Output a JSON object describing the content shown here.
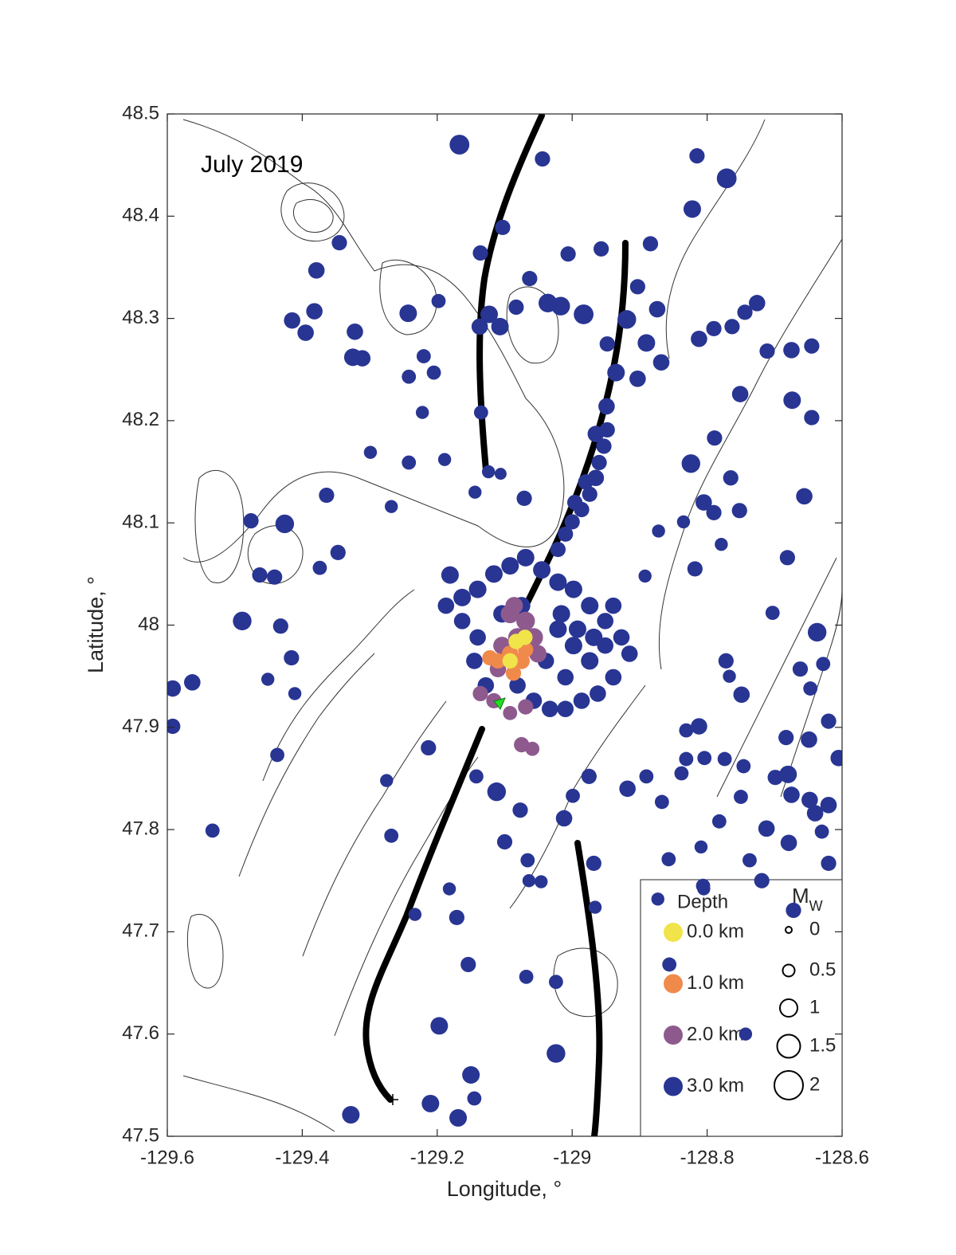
{
  "chart_data": {
    "type": "scatter",
    "annotation": "July 2019",
    "xlabel": "Longitude, °",
    "ylabel": "Latitude, °",
    "xlim": [
      -129.6,
      -128.6
    ],
    "ylim": [
      47.5,
      48.5
    ],
    "xticks": [
      -129.6,
      -129.4,
      -129.2,
      -129,
      -128.8,
      -128.6
    ],
    "yticks": [
      47.5,
      47.6,
      47.7,
      47.8,
      47.9,
      48,
      48.1,
      48.2,
      48.3,
      48.4,
      48.5
    ],
    "legend_title": "Depth",
    "size_legend_title": "M",
    "size_legend_subscript": "W",
    "size_legend_values": [
      0,
      0.5,
      1,
      1.5,
      2
    ],
    "series": [
      {
        "name": "0.0 km",
        "color": "#f0e44a",
        "x": [
          -129.083,
          -129.092,
          -129.07
        ],
        "y": [
          47.984,
          47.965,
          47.988
        ],
        "size": [
          0.8,
          0.8,
          0.8
        ]
      },
      {
        "name": "1.0 km",
        "color": "#f08a4b",
        "x": [
          -129.092,
          -129.075,
          -129.11,
          -129.069,
          -129.122,
          -129.087
        ],
        "y": [
          47.972,
          47.965,
          47.965,
          47.976,
          47.968,
          47.953
        ],
        "size": [
          0.9,
          0.9,
          0.8,
          0.8,
          0.8,
          0.8
        ]
      },
      {
        "name": "2.0 km",
        "color": "#8e5a8e",
        "x": [
          -129.092,
          -129.069,
          -129.081,
          -129.057,
          -129.104,
          -129.051,
          -129.086,
          -129.136,
          -129.116,
          -129.092,
          -129.075,
          -129.059,
          -129.069,
          -129.11
        ],
        "y": [
          48.011,
          48.004,
          47.988,
          47.988,
          47.98,
          47.972,
          48.019,
          47.933,
          47.926,
          47.914,
          47.883,
          47.879,
          47.92,
          47.957
        ],
        "size": [
          1.1,
          1.1,
          1.1,
          1.1,
          1.0,
          1.0,
          1.0,
          0.8,
          0.8,
          0.7,
          0.8,
          0.7,
          0.8,
          0.9
        ]
      },
      {
        "name": "3.0 km",
        "color": "#283593",
        "x": [
          -129.167,
          -128.771,
          -128.815,
          -129.044,
          -128.822,
          -129.103,
          -129.345,
          -129.379,
          -129.136,
          -129.006,
          -128.957,
          -128.884,
          -129.415,
          -129.382,
          -129.395,
          -129.322,
          -129.325,
          -129.311,
          -129.243,
          -129.198,
          -129.123,
          -129.107,
          -129.137,
          -129.083,
          -129.063,
          -129.036,
          -129.017,
          -128.983,
          -128.919,
          -128.903,
          -128.874,
          -128.89,
          -128.812,
          -128.79,
          -128.763,
          -128.744,
          -128.726,
          -128.711,
          -128.675,
          -128.645,
          -129.22,
          -129.205,
          -129.242,
          -129.222,
          -129.135,
          -128.948,
          -128.935,
          -128.903,
          -128.868,
          -128.751,
          -128.674,
          -128.645,
          -128.949,
          -128.965,
          -128.789,
          -128.824,
          -129.299,
          -129.242,
          -129.189,
          -129.124,
          -129.106,
          -129.364,
          -129.268,
          -129.144,
          -129.071,
          -129.476,
          -129.426,
          -129.347,
          -129.374,
          -129.463,
          -129.441,
          -129.489,
          -129.432,
          -129.416,
          -129.451,
          -129.411,
          -129.563,
          -129.592,
          -129.592,
          -129.437,
          -129.533,
          -129.328,
          -129.268,
          -129.275,
          -129.213,
          -129.233,
          -129.182,
          -129.171,
          -129.154,
          -129.197,
          -129.15,
          -129.145,
          -129.21,
          -129.169,
          -129.024,
          -129.024,
          -129.068,
          -129.066,
          -129.064,
          -129.046,
          -129.1,
          -129.077,
          -129.112,
          -129.142,
          -129.012,
          -128.999,
          -128.975,
          -128.968,
          -128.966,
          -128.918,
          -128.89,
          -128.867,
          -128.857,
          -128.809,
          -128.805,
          -128.831,
          -128.812,
          -128.838,
          -128.831,
          -128.804,
          -128.774,
          -128.746,
          -128.782,
          -128.75,
          -128.749,
          -128.699,
          -128.68,
          -128.675,
          -128.683,
          -128.649,
          -128.62,
          -128.605,
          -128.647,
          -128.628,
          -128.662,
          -128.637,
          -128.703,
          -128.772,
          -128.767,
          -128.681,
          -128.656,
          -128.752,
          -128.79,
          -128.779,
          -128.818,
          -128.892,
          -128.872,
          -128.835,
          -128.805,
          -128.765,
          -128.62,
          -128.64,
          -128.648,
          -128.712,
          -128.679,
          -128.63,
          -128.62,
          -128.737,
          -128.719,
          -128.743,
          -128.672,
          -128.873,
          -128.806,
          -128.856,
          -129.181,
          -129.163,
          -129.14,
          -129.116,
          -129.092,
          -129.069,
          -129.045,
          -129.021,
          -128.998,
          -128.974,
          -128.951,
          -128.927,
          -128.915,
          -128.939,
          -128.962,
          -128.986,
          -129.01,
          -129.033,
          -129.057,
          -129.081,
          -129.14,
          -129.163,
          -129.187,
          -129.145,
          -129.128,
          -129.104,
          -129.075,
          -129.021,
          -128.998,
          -128.974,
          -129.01,
          -129.039,
          -128.951,
          -129.016,
          -128.992,
          -128.968,
          -128.939,
          -129.0,
          -128.986,
          -128.974,
          -128.965,
          -128.96,
          -128.953,
          -128.948,
          -129.021,
          -129.01,
          -128.996,
          -128.98
        ],
        "y": [
          48.47,
          48.437,
          48.459,
          48.456,
          48.407,
          48.389,
          48.374,
          48.347,
          48.364,
          48.363,
          48.368,
          48.373,
          48.298,
          48.307,
          48.286,
          48.287,
          48.262,
          48.261,
          48.305,
          48.317,
          48.304,
          48.292,
          48.292,
          48.311,
          48.339,
          48.315,
          48.312,
          48.304,
          48.299,
          48.331,
          48.309,
          48.276,
          48.28,
          48.29,
          48.292,
          48.306,
          48.315,
          48.268,
          48.269,
          48.273,
          48.263,
          48.247,
          48.243,
          48.208,
          48.208,
          48.275,
          48.247,
          48.241,
          48.257,
          48.226,
          48.22,
          48.203,
          48.214,
          48.187,
          48.183,
          48.158,
          48.169,
          48.159,
          48.162,
          48.15,
          48.148,
          48.127,
          48.116,
          48.13,
          48.124,
          48.102,
          48.099,
          48.071,
          48.056,
          48.049,
          48.047,
          48.004,
          47.999,
          47.968,
          47.947,
          47.933,
          47.944,
          47.938,
          47.901,
          47.873,
          47.799,
          47.521,
          47.794,
          47.848,
          47.88,
          47.717,
          47.742,
          47.714,
          47.668,
          47.608,
          47.56,
          47.537,
          47.532,
          47.518,
          47.581,
          47.651,
          47.656,
          47.77,
          47.75,
          47.749,
          47.788,
          47.819,
          47.837,
          47.852,
          47.811,
          47.833,
          47.852,
          47.767,
          47.724,
          47.84,
          47.852,
          47.827,
          47.771,
          47.783,
          47.742,
          47.897,
          47.901,
          47.855,
          47.869,
          47.87,
          47.869,
          47.862,
          47.808,
          47.832,
          47.932,
          47.851,
          47.854,
          47.834,
          47.89,
          47.888,
          47.906,
          47.87,
          47.938,
          47.962,
          47.957,
          47.993,
          48.012,
          47.965,
          47.95,
          48.066,
          48.126,
          48.112,
          48.11,
          48.079,
          48.055,
          48.048,
          48.092,
          48.101,
          48.12,
          48.144,
          47.824,
          47.816,
          47.829,
          47.801,
          47.787,
          47.798,
          47.767,
          47.77,
          47.75,
          47.6,
          47.721,
          47.732,
          47.745,
          47.668,
          48.049,
          48.027,
          48.035,
          48.05,
          48.058,
          48.066,
          48.054,
          48.042,
          48.035,
          48.019,
          48.004,
          47.988,
          47.972,
          47.949,
          47.933,
          47.926,
          47.918,
          47.918,
          47.926,
          47.941,
          47.988,
          48.004,
          48.019,
          47.965,
          47.941,
          48.011,
          48.019,
          47.996,
          47.98,
          47.965,
          47.949,
          47.965,
          47.98,
          48.011,
          47.996,
          47.988,
          48.019,
          48.101,
          48.113,
          48.128,
          48.144,
          48.159,
          48.175,
          48.191,
          48.074,
          48.089,
          48.12,
          48.14
        ],
        "size": [
          1.2,
          1.2,
          0.8,
          0.8,
          1.0,
          0.8,
          0.8,
          0.9,
          0.8,
          0.8,
          0.8,
          0.8,
          0.9,
          0.9,
          0.9,
          0.9,
          1.0,
          0.9,
          1.0,
          0.7,
          1.0,
          1.0,
          0.9,
          0.8,
          0.8,
          1.1,
          1.1,
          1.2,
          1.1,
          0.8,
          0.9,
          1.0,
          0.9,
          0.8,
          0.8,
          0.8,
          0.9,
          0.8,
          0.9,
          0.8,
          0.7,
          0.7,
          0.7,
          0.6,
          0.7,
          0.8,
          1.0,
          0.9,
          0.9,
          0.9,
          1.0,
          0.8,
          0.9,
          0.9,
          0.8,
          1.1,
          0.6,
          0.7,
          0.6,
          0.6,
          0.5,
          0.8,
          0.6,
          0.6,
          0.8,
          0.8,
          1.1,
          0.8,
          0.7,
          0.8,
          0.8,
          1.1,
          0.8,
          0.8,
          0.6,
          0.6,
          0.9,
          0.9,
          0.8,
          0.7,
          0.7,
          1.0,
          0.7,
          0.6,
          0.8,
          0.6,
          0.6,
          0.8,
          0.8,
          1.0,
          1.0,
          0.7,
          1.0,
          1.0,
          1.1,
          0.7,
          0.7,
          0.7,
          0.6,
          0.6,
          0.8,
          0.8,
          1.1,
          0.7,
          0.9,
          0.7,
          0.8,
          0.8,
          0.6,
          0.9,
          0.7,
          0.7,
          0.7,
          0.6,
          0.6,
          0.7,
          0.9,
          0.7,
          0.7,
          0.7,
          0.7,
          0.7,
          0.7,
          0.7,
          0.9,
          0.8,
          1.0,
          0.9,
          0.8,
          0.9,
          0.8,
          0.9,
          0.7,
          0.7,
          0.8,
          1.1,
          0.7,
          0.8,
          0.6,
          0.8,
          0.9,
          0.8,
          0.8,
          0.6,
          0.8,
          0.6,
          0.6,
          0.6,
          0.9,
          0.8,
          0.9,
          0.9,
          0.9,
          0.9,
          0.9,
          0.7,
          0.8,
          0.7,
          0.8,
          0.6,
          0.8,
          0.6,
          0.7,
          0.7,
          1.0,
          1.0,
          1.0,
          1.0,
          1.0,
          1.0,
          1.0,
          1.0,
          1.0,
          1.0,
          0.9,
          0.9,
          0.9,
          0.9,
          0.9,
          0.9,
          0.9,
          0.9,
          0.9,
          0.9,
          0.9,
          0.9,
          0.9,
          0.9,
          0.9,
          1.0,
          1.0,
          1.0,
          1.0,
          1.0,
          0.9,
          0.9,
          0.9,
          1.0,
          1.0,
          1.0,
          0.9,
          0.8,
          0.8,
          0.8,
          0.9,
          0.8,
          0.8,
          0.8,
          0.8,
          0.8,
          0.8,
          0.8
        ]
      }
    ]
  }
}
